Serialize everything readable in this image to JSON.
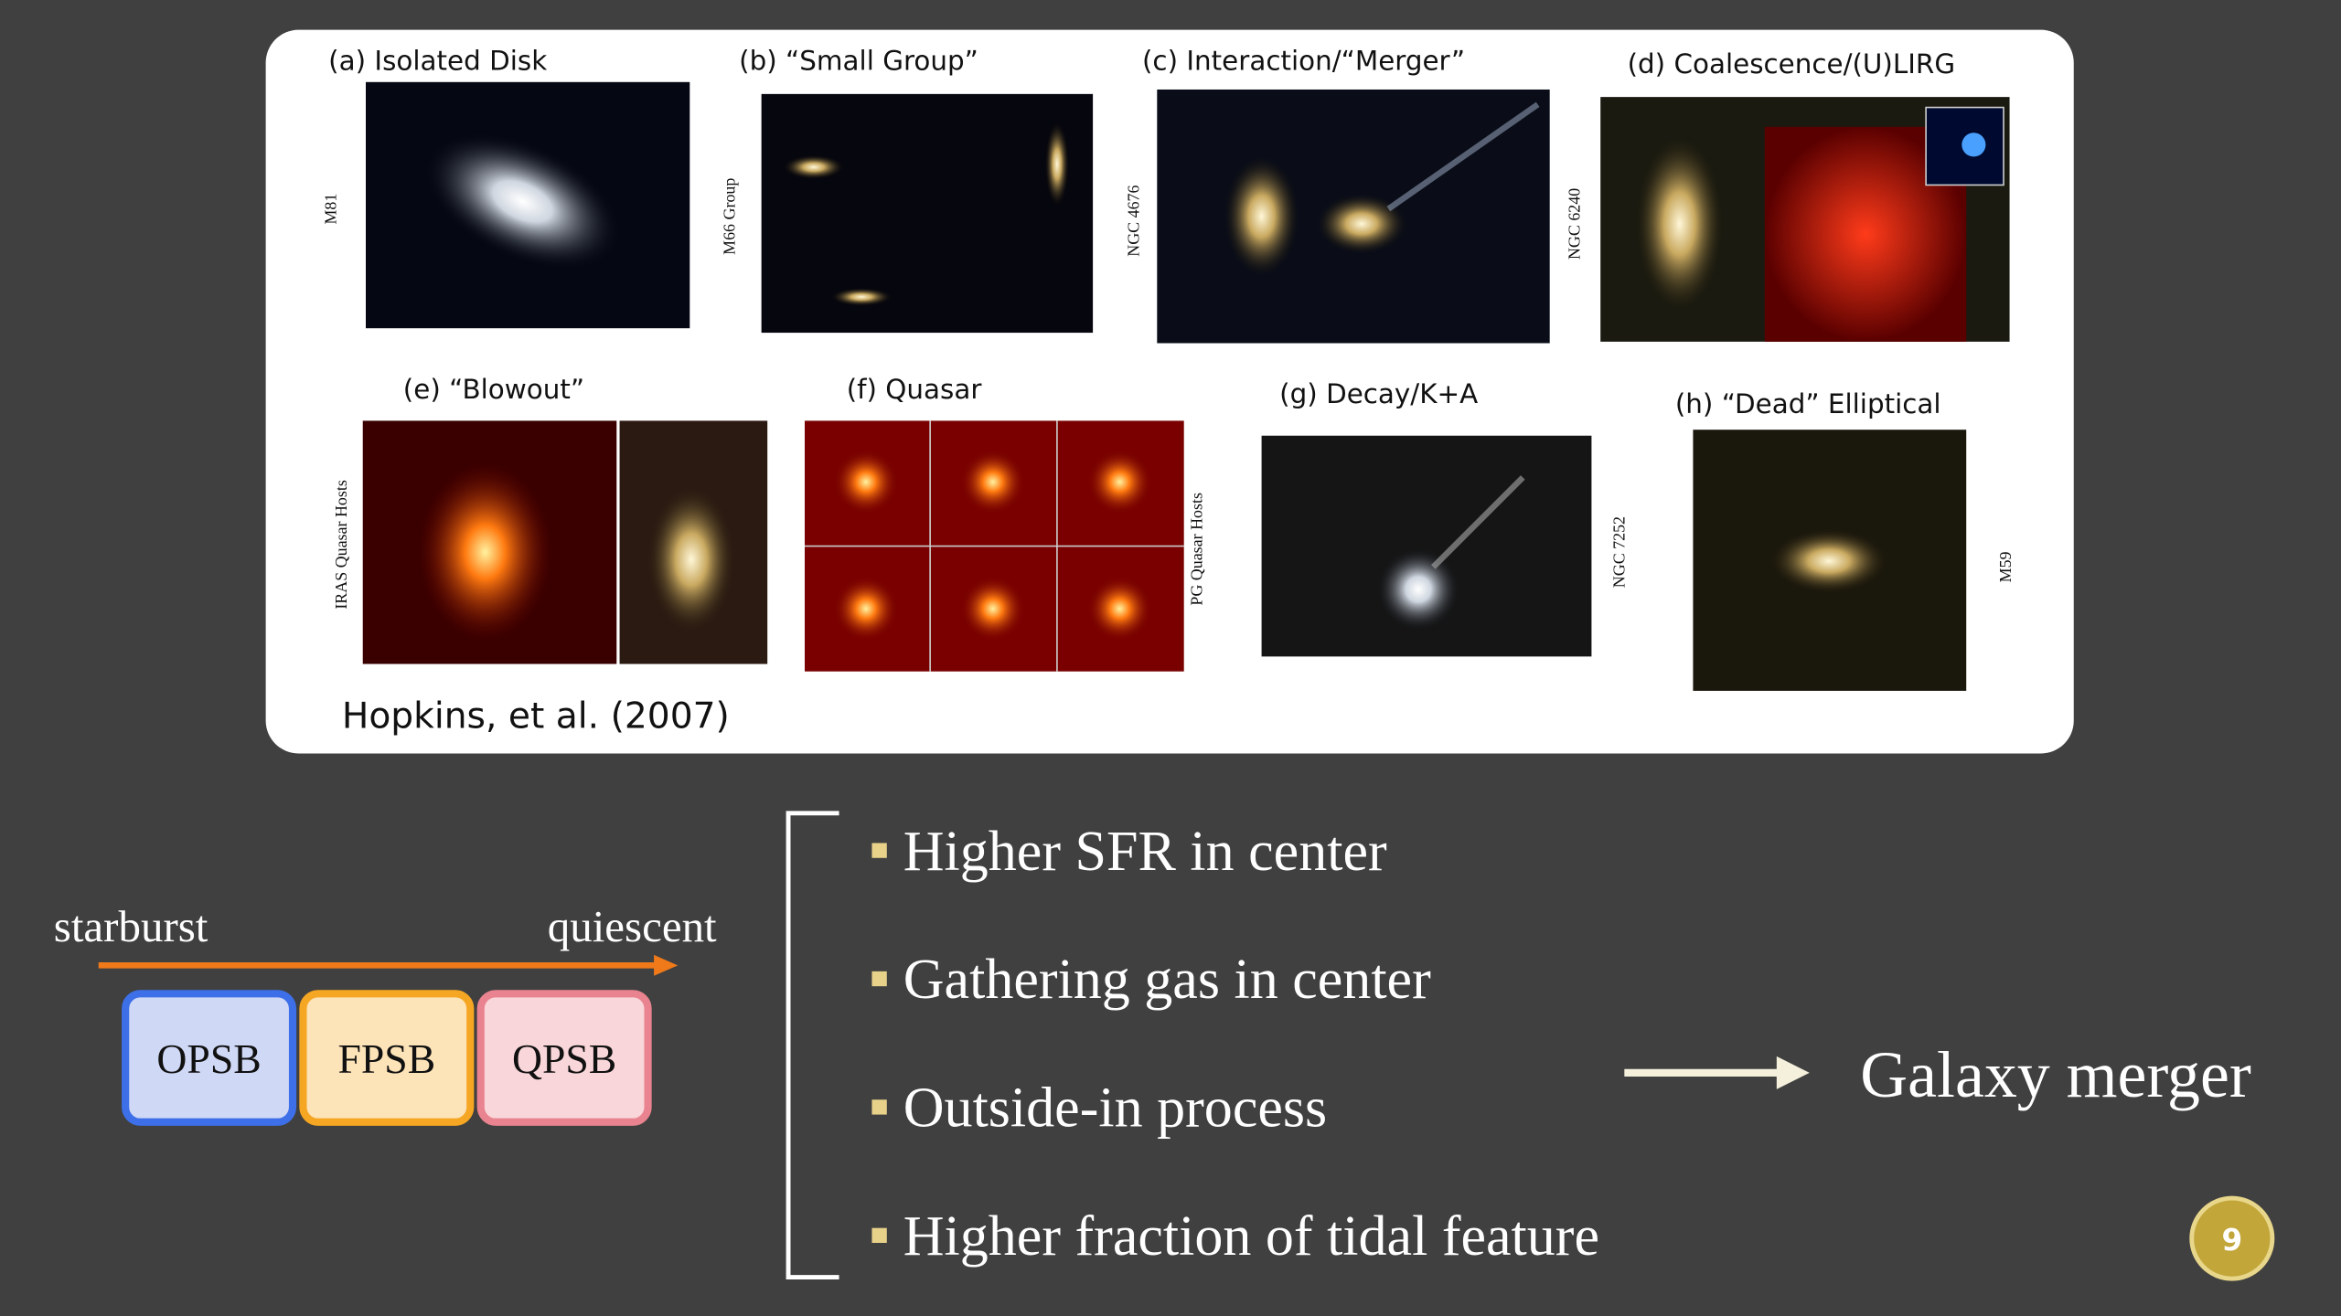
{
  "figure": {
    "panels": [
      {
        "label": "(a) Isolated Disk",
        "object": "M81"
      },
      {
        "label": "(b) “Small Group”",
        "object": "M66 Group"
      },
      {
        "label": "(c) Interaction/“Merger”",
        "object": "NGC 4676"
      },
      {
        "label": "(d) Coalescence/(U)LIRG",
        "object": "NGC 6240"
      },
      {
        "label": "(e) “Blowout”",
        "object": "IRAS Quasar Hosts"
      },
      {
        "label": "(f) Quasar",
        "object": "PG Quasar Hosts"
      },
      {
        "label": "(g) Decay/K+A",
        "object": "NGC 7252"
      },
      {
        "label": "(h) “Dead” Elliptical",
        "object": "M59"
      }
    ],
    "citation": "Hopkins, et al. (2007)"
  },
  "sequence": {
    "start": "starburst",
    "end": "quiescent",
    "stages": [
      "OPSB",
      "FPSB",
      "QPSB"
    ]
  },
  "bullets": [
    "Higher SFR in center",
    "Gathering gas in center",
    "Outside-in process",
    "Higher fraction of tidal feature"
  ],
  "conclusion": "Galaxy merger",
  "page_number": "9"
}
